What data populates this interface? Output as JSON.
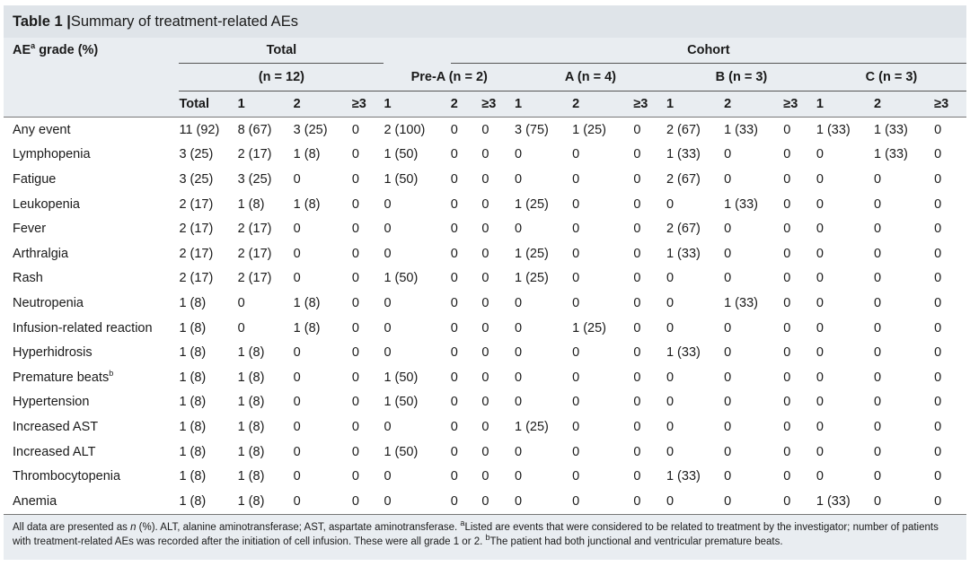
{
  "table": {
    "title_bold": "Table 1 |",
    "title_rest": " Summary of treatment-related AEs",
    "header": {
      "ae_grade_label_pre": "AE",
      "ae_grade_sup": "a",
      "ae_grade_label_post": " grade (%)",
      "total_group": "Total",
      "total_n": "(n = 12)",
      "cohort_group": "Cohort",
      "cohorts": [
        "Pre-A (n = 2)",
        "A (n = 4)",
        "B (n = 3)",
        "C (n = 3)"
      ],
      "sub_total": [
        "Total",
        "1",
        "2",
        "≥3"
      ],
      "sub_cohort": [
        "1",
        "2",
        "≥3"
      ]
    },
    "rows": [
      {
        "label": "Any event",
        "sup": "",
        "cells": [
          "11 (92)",
          "8 (67)",
          "3 (25)",
          "0",
          "2 (100)",
          "0",
          "0",
          "3 (75)",
          "1 (25)",
          "0",
          "2 (67)",
          "1 (33)",
          "0",
          "1 (33)",
          "1 (33)",
          "0"
        ]
      },
      {
        "label": "Lymphopenia",
        "sup": "",
        "cells": [
          "3 (25)",
          "2 (17)",
          "1 (8)",
          "0",
          "1 (50)",
          "0",
          "0",
          "0",
          "0",
          "0",
          "1 (33)",
          "0",
          "0",
          "0",
          "1 (33)",
          "0"
        ]
      },
      {
        "label": "Fatigue",
        "sup": "",
        "cells": [
          "3 (25)",
          "3 (25)",
          "0",
          "0",
          "1 (50)",
          "0",
          "0",
          "0",
          "0",
          "0",
          "2 (67)",
          "0",
          "0",
          "0",
          "0",
          "0"
        ]
      },
      {
        "label": "Leukopenia",
        "sup": "",
        "cells": [
          "2 (17)",
          "1 (8)",
          "1 (8)",
          "0",
          "0",
          "0",
          "0",
          "1 (25)",
          "0",
          "0",
          "0",
          "1 (33)",
          "0",
          "0",
          "0",
          "0"
        ]
      },
      {
        "label": "Fever",
        "sup": "",
        "cells": [
          "2 (17)",
          "2 (17)",
          "0",
          "0",
          "0",
          "0",
          "0",
          "0",
          "0",
          "0",
          "2 (67)",
          "0",
          "0",
          "0",
          "0",
          "0"
        ]
      },
      {
        "label": "Arthralgia",
        "sup": "",
        "cells": [
          "2 (17)",
          "2 (17)",
          "0",
          "0",
          "0",
          "0",
          "0",
          "1 (25)",
          "0",
          "0",
          "1 (33)",
          "0",
          "0",
          "0",
          "0",
          "0"
        ]
      },
      {
        "label": "Rash",
        "sup": "",
        "cells": [
          "2 (17)",
          "2 (17)",
          "0",
          "0",
          "1 (50)",
          "0",
          "0",
          "1 (25)",
          "0",
          "0",
          "0",
          "0",
          "0",
          "0",
          "0",
          "0"
        ]
      },
      {
        "label": "Neutropenia",
        "sup": "",
        "cells": [
          "1 (8)",
          "0",
          "1 (8)",
          "0",
          "0",
          "0",
          "0",
          "0",
          "0",
          "0",
          "0",
          "1 (33)",
          "0",
          "0",
          "0",
          "0"
        ]
      },
      {
        "label": "Infusion-related reaction",
        "sup": "",
        "cells": [
          "1 (8)",
          "0",
          "1 (8)",
          "0",
          "0",
          "0",
          "0",
          "0",
          "1 (25)",
          "0",
          "0",
          "0",
          "0",
          "0",
          "0",
          "0"
        ]
      },
      {
        "label": "Hyperhidrosis",
        "sup": "",
        "cells": [
          "1 (8)",
          "1 (8)",
          "0",
          "0",
          "0",
          "0",
          "0",
          "0",
          "0",
          "0",
          "1 (33)",
          "0",
          "0",
          "0",
          "0",
          "0"
        ]
      },
      {
        "label": "Premature beats",
        "sup": "b",
        "cells": [
          "1 (8)",
          "1 (8)",
          "0",
          "0",
          "1 (50)",
          "0",
          "0",
          "0",
          "0",
          "0",
          "0",
          "0",
          "0",
          "0",
          "0",
          "0"
        ]
      },
      {
        "label": "Hypertension",
        "sup": "",
        "cells": [
          "1 (8)",
          "1 (8)",
          "0",
          "0",
          "1 (50)",
          "0",
          "0",
          "0",
          "0",
          "0",
          "0",
          "0",
          "0",
          "0",
          "0",
          "0"
        ]
      },
      {
        "label": "Increased AST",
        "sup": "",
        "cells": [
          "1 (8)",
          "1 (8)",
          "0",
          "0",
          "0",
          "0",
          "0",
          "1 (25)",
          "0",
          "0",
          "0",
          "0",
          "0",
          "0",
          "0",
          "0"
        ]
      },
      {
        "label": "Increased ALT",
        "sup": "",
        "cells": [
          "1 (8)",
          "1 (8)",
          "0",
          "0",
          "1 (50)",
          "0",
          "0",
          "0",
          "0",
          "0",
          "0",
          "0",
          "0",
          "0",
          "0",
          "0"
        ]
      },
      {
        "label": "Thrombocytopenia",
        "sup": "",
        "cells": [
          "1 (8)",
          "1 (8)",
          "0",
          "0",
          "0",
          "0",
          "0",
          "0",
          "0",
          "0",
          "1 (33)",
          "0",
          "0",
          "0",
          "0",
          "0"
        ]
      },
      {
        "label": "Anemia",
        "sup": "",
        "cells": [
          "1 (8)",
          "1 (8)",
          "0",
          "0",
          "0",
          "0",
          "0",
          "0",
          "0",
          "0",
          "0",
          "0",
          "0",
          "1 (33)",
          "0",
          "0"
        ]
      }
    ],
    "footnote_line1_a": "All data are presented as ",
    "footnote_line1_n": "n",
    "footnote_line1_b": " (%). ALT, alanine aminotransferase; AST, aspartate aminotransferase. ",
    "footnote_sup_a": "a",
    "footnote_line1_c": "Listed are events that were considered to be related to treatment by the investigator; number of patients",
    "footnote_line2_a": "with treatment-related AEs was recorded after the initiation of cell infusion. These were all grade 1 or 2. ",
    "footnote_sup_b": "b",
    "footnote_line2_b": "The patient had both junctional and ventricular premature beats."
  },
  "colors": {
    "title_bg": "#dfe4e9",
    "header_bg": "#e9edf1",
    "text": "#1a1a1a"
  }
}
